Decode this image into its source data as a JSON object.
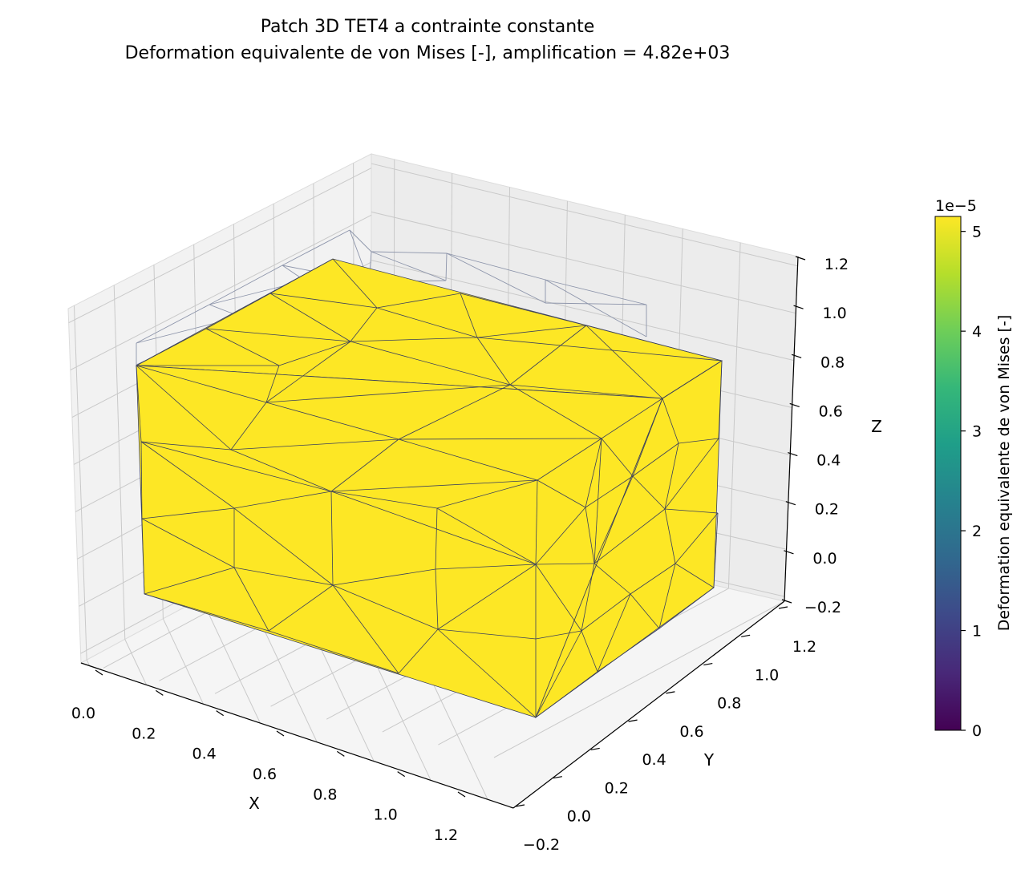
{
  "chart_data": {
    "type": "3d-mesh-surface",
    "title": "Patch 3D TET4 a contrainte constante",
    "subtitle": "Deformation equivalente de von Mises [-], amplification = 4.82e+03",
    "xlabel": "X",
    "ylabel": "Y",
    "zlabel": "Z",
    "x_ticks": [
      "0.0",
      "0.2",
      "0.4",
      "0.6",
      "0.8",
      "1.0",
      "1.2"
    ],
    "y_ticks": [
      "−0.2",
      "0.0",
      "0.2",
      "0.4",
      "0.6",
      "0.8",
      "1.0",
      "1.2"
    ],
    "z_ticks": [
      "−0.2",
      "0.0",
      "0.2",
      "0.4",
      "0.6",
      "0.8",
      "1.0",
      "1.2"
    ],
    "xlim": [
      -0.05,
      1.3
    ],
    "ylim": [
      -0.2,
      1.3
    ],
    "zlim": [
      -0.2,
      1.2
    ],
    "grid": true,
    "field_value": 5.15e-05,
    "face_color": "#fde725",
    "edge_color": "#3a3f5c",
    "undeformed_edge_color": "#8c94aa",
    "colorbar": {
      "label": "Deformation equivalente de von Mises [-]",
      "offset_text": "1e−5",
      "ticks": [
        "0",
        "1",
        "2",
        "3",
        "4",
        "5"
      ],
      "min": 0,
      "max": 5.15,
      "colormap": "viridis",
      "colors": [
        "#440154",
        "#482878",
        "#3e4989",
        "#31688e",
        "#26828e",
        "#1f9e89",
        "#35b779",
        "#6ece58",
        "#b5de2b",
        "#fde725"
      ]
    }
  }
}
